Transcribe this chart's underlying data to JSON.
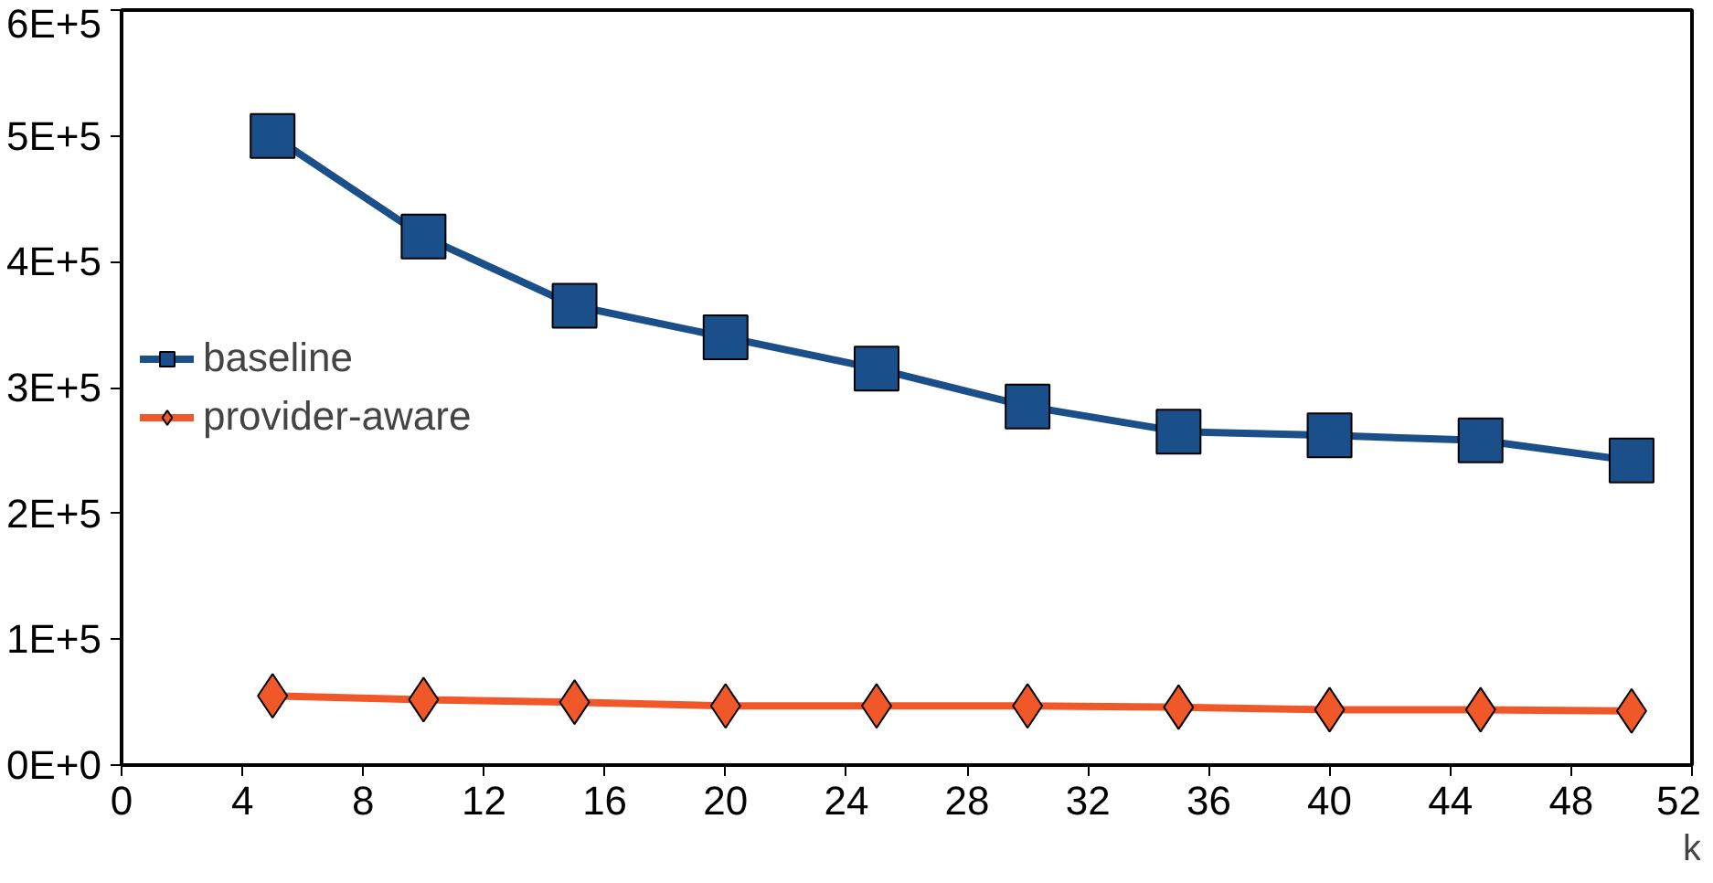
{
  "chart_data": {
    "type": "line",
    "xlabel": "k",
    "x": [
      5,
      10,
      15,
      20,
      25,
      30,
      35,
      40,
      45,
      50
    ],
    "series": [
      {
        "name": "baseline",
        "color": "#1b4f8a",
        "marker": "square",
        "values": [
          500000,
          420000,
          365000,
          340000,
          315000,
          285000,
          265000,
          262000,
          258000,
          242000
        ]
      },
      {
        "name": "provider-aware",
        "color": "#f0582a",
        "marker": "diamond",
        "values": [
          55000,
          52000,
          50000,
          47000,
          47000,
          47000,
          46000,
          44000,
          44000,
          43000
        ]
      }
    ],
    "xlim": [
      0,
      52
    ],
    "xticks": [
      0,
      4,
      8,
      12,
      16,
      20,
      24,
      28,
      32,
      36,
      40,
      44,
      48,
      52
    ],
    "ylim": [
      0,
      600000
    ],
    "yticks": [
      {
        "value": 0,
        "label": "0E+0"
      },
      {
        "value": 100000,
        "label": "1E+5"
      },
      {
        "value": 200000,
        "label": "2E+5"
      },
      {
        "value": 300000,
        "label": "3E+5"
      },
      {
        "value": 400000,
        "label": "4E+5"
      },
      {
        "value": 500000,
        "label": "5E+5"
      },
      {
        "value": 600000,
        "label": "6E+5"
      }
    ],
    "grid": false,
    "legend": "left",
    "line_style": "solid"
  }
}
